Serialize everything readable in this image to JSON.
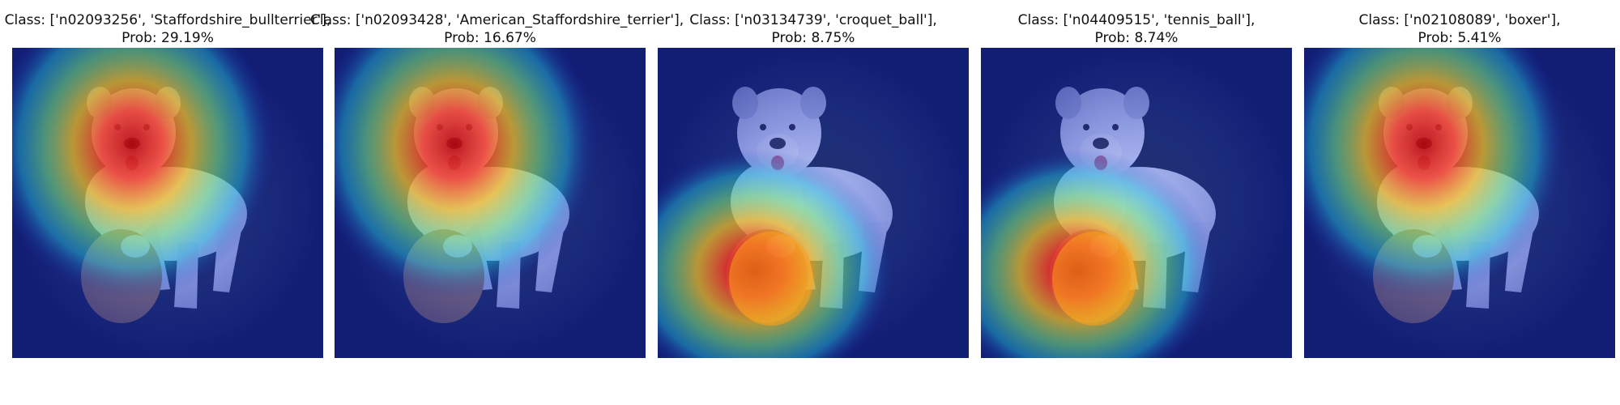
{
  "panels": [
    {
      "class_label": "Class: ['n02093256', 'Staffordshire_bullterrier'],",
      "prob_label": "Prob: 29.19%",
      "focus": "dog-head"
    },
    {
      "class_label": "Class: ['n02093428', 'American_Staffordshire_terrier'],",
      "prob_label": "Prob: 16.67%",
      "focus": "dog-head"
    },
    {
      "class_label": "Class: ['n03134739', 'croquet_ball'],",
      "prob_label": "Prob: 8.75%",
      "focus": "ball"
    },
    {
      "class_label": "Class: ['n04409515', 'tennis_ball'],",
      "prob_label": "Prob: 8.74%",
      "focus": "ball"
    },
    {
      "class_label": "Class: ['n02108089', 'boxer'],",
      "prob_label": "Prob: 5.41%",
      "focus": "dog-head"
    }
  ]
}
